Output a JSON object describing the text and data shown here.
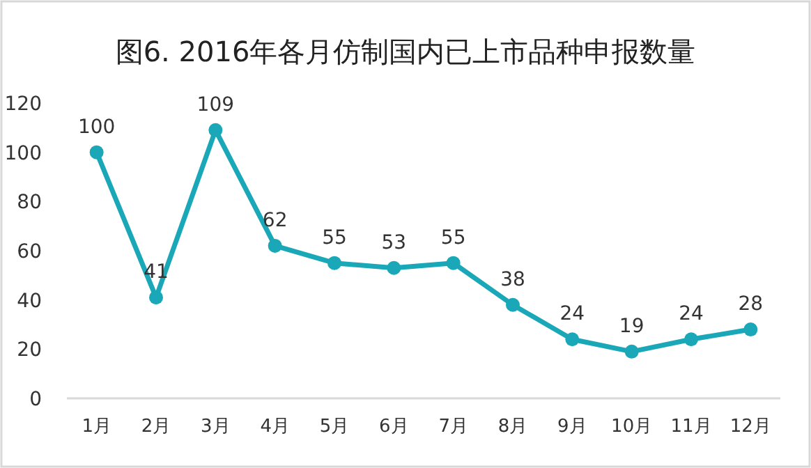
{
  "chart_data": {
    "type": "line",
    "title": "图6. 2016年各月仿制国内已上市品种申报数量",
    "categories": [
      "1月",
      "2月",
      "3月",
      "4月",
      "5月",
      "6月",
      "7月",
      "8月",
      "9月",
      "10月",
      "11月",
      "12月"
    ],
    "values": [
      100,
      41,
      109,
      62,
      55,
      53,
      55,
      38,
      24,
      19,
      24,
      28
    ],
    "color": "#1aa8b8",
    "marker": "circle",
    "data_labels": true,
    "ylim": [
      0,
      120
    ],
    "yticks": [
      0,
      20,
      40,
      60,
      80,
      100,
      120
    ]
  }
}
